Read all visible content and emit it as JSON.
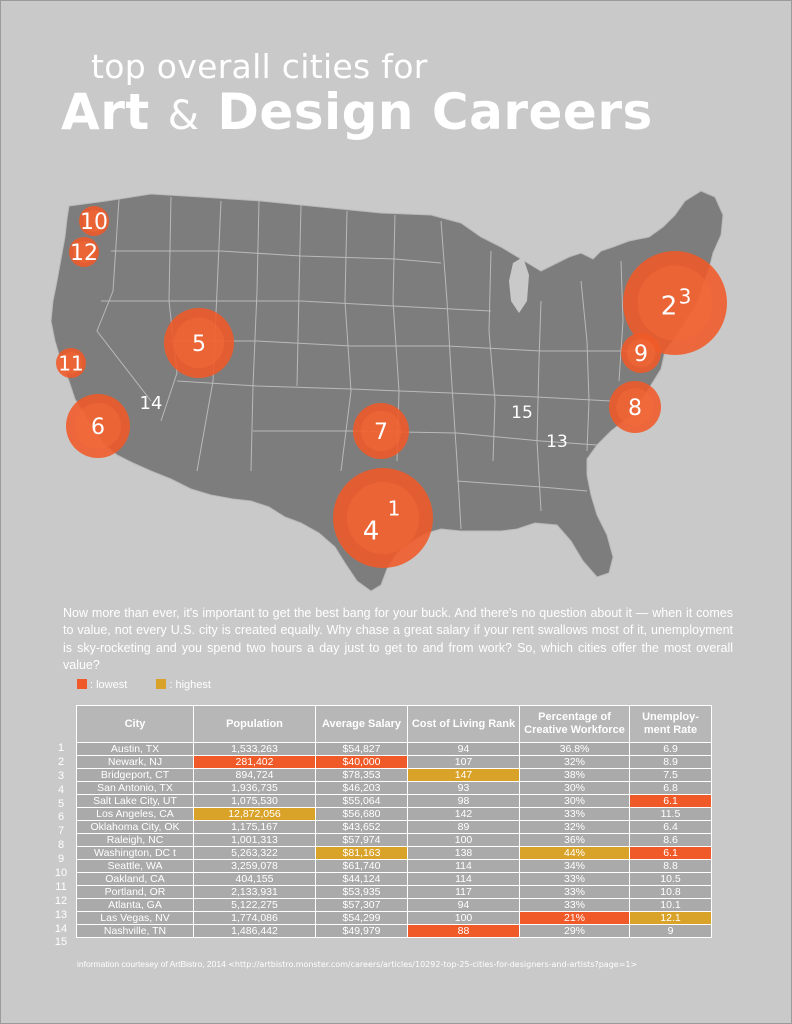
{
  "title": {
    "line1": "top overall cities for",
    "line2_a": "Art",
    "line2_amp": "&",
    "line2_b": "Design Careers"
  },
  "colors": {
    "background": "#c9c9c9",
    "map_land": "#7d7d7d",
    "map_lines": "#b9b9b9",
    "bubble": "#f05a28",
    "lowest": "#f05a28",
    "highest": "#d9a32a"
  },
  "map": {
    "markers": [
      {
        "label": "10",
        "size": "small"
      },
      {
        "label": "12",
        "size": "small"
      },
      {
        "label": "5",
        "size": "large"
      },
      {
        "label": "11",
        "size": "small"
      },
      {
        "label": "14",
        "size": "tiny"
      },
      {
        "label": "6",
        "size": "large"
      },
      {
        "label": "7",
        "size": "medium"
      },
      {
        "label": "4",
        "size": "xlarge"
      },
      {
        "label": "1",
        "size": "xlarge"
      },
      {
        "label": "2",
        "size": "xlarge"
      },
      {
        "label": "3",
        "size": "xlarge"
      },
      {
        "label": "9",
        "size": "small"
      },
      {
        "label": "8",
        "size": "medium"
      },
      {
        "label": "15",
        "size": "tiny"
      },
      {
        "label": "13",
        "size": "tiny"
      }
    ]
  },
  "intro": "Now more than ever, it's important to get the best bang for your buck. And there's no question about it — when it comes to value, not every U.S. city is created equally.  Why chase a great salary if your rent swallows most of it, unemployment is sky-rocketing and you spend two hours a day just to get to and from work?  So, which cities offer the most overall value?",
  "legend": {
    "lowest": ": lowest",
    "highest": ": highest"
  },
  "table": {
    "headers": [
      "City",
      "Population",
      "Average Salary",
      "Cost of Living Rank",
      "Percentage of Creative Workforce",
      "Unemploy-ment Rate"
    ],
    "rows": [
      {
        "rank": "1",
        "city": "Austin, TX",
        "population": "1,533,263",
        "salary": "$54,827",
        "col": "94",
        "creative": "36.8%",
        "unemployment": "6.9"
      },
      {
        "rank": "2",
        "city": "Newark, NJ",
        "population": "281,402",
        "salary": "$40,000",
        "col": "107",
        "creative": "32%",
        "unemployment": "8.9"
      },
      {
        "rank": "3",
        "city": "Bridgeport, CT",
        "population": "894,724",
        "salary": "$78,353",
        "col": "147",
        "creative": "38%",
        "unemployment": "7.5"
      },
      {
        "rank": "4",
        "city": "San Antonio, TX",
        "population": "1,936,735",
        "salary": "$46,203",
        "col": "93",
        "creative": "30%",
        "unemployment": "6.8"
      },
      {
        "rank": "5",
        "city": "Salt Lake City, UT",
        "population": "1,075,530",
        "salary": "$55,064",
        "col": "98",
        "creative": "30%",
        "unemployment": "6.1"
      },
      {
        "rank": "6",
        "city": "Los Angeles, CA",
        "population": "12,872,056",
        "salary": "$56,680",
        "col": "142",
        "creative": "33%",
        "unemployment": "11.5"
      },
      {
        "rank": "7",
        "city": "Oklahoma City, OK",
        "population": "1,175,167",
        "salary": "$43,652",
        "col": "89",
        "creative": "32%",
        "unemployment": "6.4"
      },
      {
        "rank": "8",
        "city": "Raleigh, NC",
        "population": "1,001,313",
        "salary": "$57,974",
        "col": "100",
        "creative": "36%",
        "unemployment": "8.6"
      },
      {
        "rank": "9",
        "city": "Washington, DC t",
        "population": "5,263,322",
        "salary": "$81,163",
        "col": "138",
        "creative": "44%",
        "unemployment": "6.1"
      },
      {
        "rank": "10",
        "city": "Seattle, WA",
        "population": "3,259,078",
        "salary": "$61,740",
        "col": "114",
        "creative": "34%",
        "unemployment": "8.8"
      },
      {
        "rank": "11",
        "city": "Oakland, CA",
        "population": "404,155",
        "salary": "$44,124",
        "col": "114",
        "creative": "33%",
        "unemployment": "10.5"
      },
      {
        "rank": "12",
        "city": "Portland, OR",
        "population": "2,133,931",
        "salary": "$53,935",
        "col": "117",
        "creative": "33%",
        "unemployment": "10.8"
      },
      {
        "rank": "13",
        "city": "Atlanta, GA",
        "population": "5,122,275",
        "salary": "$57,307",
        "col": "94",
        "creative": "33%",
        "unemployment": "10.1"
      },
      {
        "rank": "14",
        "city": "Las Vegas, NV",
        "population": "1,774,086",
        "salary": "$54,299",
        "col": "100",
        "creative": "21%",
        "unemployment": "12.1"
      },
      {
        "rank": "15",
        "city": "Nashville, TN",
        "population": "1,486,442",
        "salary": "$49,979",
        "col": "88",
        "creative": "29%",
        "unemployment": "9"
      }
    ],
    "highlights": {
      "lowest": [
        [
          1,
          "population"
        ],
        [
          1,
          "salary"
        ],
        [
          4,
          "unemployment"
        ],
        [
          8,
          "unemployment"
        ],
        [
          13,
          "creative"
        ],
        [
          14,
          "col"
        ]
      ],
      "highest": [
        [
          2,
          "col"
        ],
        [
          5,
          "population"
        ],
        [
          8,
          "salary"
        ],
        [
          8,
          "creative"
        ],
        [
          13,
          "unemployment"
        ]
      ]
    }
  },
  "footer": {
    "credit": "information courtesey of ArtBistro, 2014",
    "source": "<http://artbistro.monster.com/careers/articles/10292-top-25-cities-for-designers-and-artists?page=1>"
  }
}
